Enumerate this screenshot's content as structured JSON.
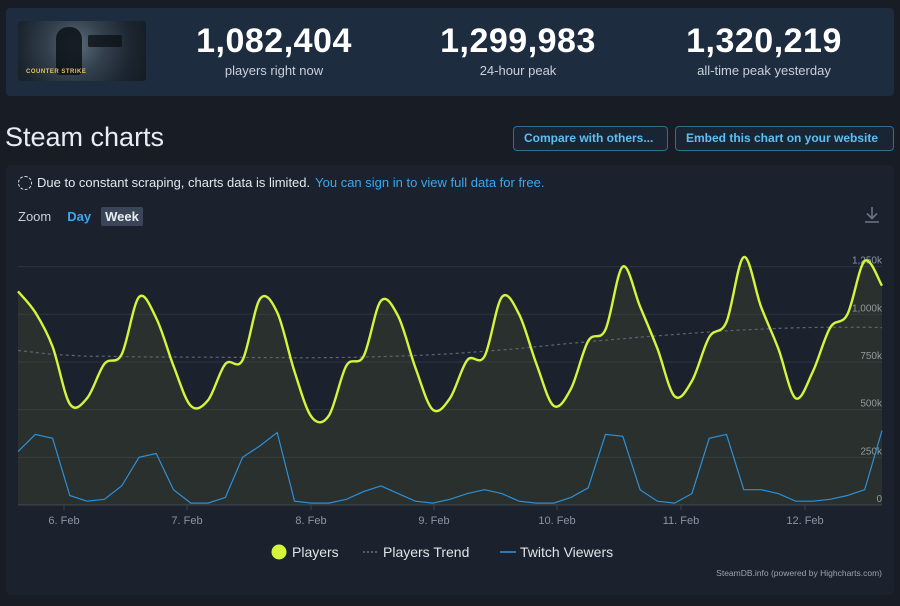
{
  "stats": [
    {
      "value": "1,082,404",
      "label": "players right now"
    },
    {
      "value": "1,299,983",
      "label": "24-hour peak"
    },
    {
      "value": "1,320,219",
      "label": "all-time peak yesterday"
    }
  ],
  "game_logo_text": "COUNTER STRIKE",
  "page_title": "Steam charts",
  "buttons": {
    "compare": "Compare with others...",
    "embed": "Embed this chart on your website"
  },
  "notice": {
    "text": "Due to constant scraping, charts data is limited.",
    "link": "You can sign in to view full data for free."
  },
  "zoom": {
    "label": "Zoom",
    "day": "Day",
    "week": "Week",
    "selected": "Week"
  },
  "credits": "SteamDB.info (powered by Highcharts.com)",
  "colors": {
    "players": "#d4f53c",
    "trend": "#5b6472",
    "twitch": "#2e8fd8",
    "accent": "#39a8ef",
    "background": "#181c24"
  },
  "chart_data": {
    "type": "line",
    "x_start": "5 Feb, 12:00",
    "x_step_hours": 3,
    "xticks": [
      "6. Feb",
      "7. Feb",
      "8. Feb",
      "9. Feb",
      "10. Feb",
      "11. Feb",
      "12. Feb"
    ],
    "yticks": [
      "0",
      "250k",
      "500k",
      "750k",
      "1,000k",
      "1,250k"
    ],
    "ylim": [
      0,
      1400000
    ],
    "grid": true,
    "legend": "bottom-center",
    "series": [
      {
        "name": "Players",
        "values": [
          1120000,
          1010000,
          830000,
          530000,
          560000,
          740000,
          790000,
          1090000,
          980000,
          730000,
          520000,
          550000,
          740000,
          760000,
          1080000,
          1010000,
          700000,
          460000,
          470000,
          730000,
          780000,
          1070000,
          990000,
          720000,
          500000,
          560000,
          760000,
          780000,
          1090000,
          1000000,
          740000,
          520000,
          610000,
          860000,
          920000,
          1250000,
          1040000,
          820000,
          570000,
          650000,
          880000,
          960000,
          1300000,
          1040000,
          820000,
          560000,
          700000,
          930000,
          1000000,
          1280000,
          1150000
        ]
      },
      {
        "name": "Players Trend",
        "values": [
          810000,
          800000,
          790000,
          785000,
          780000,
          780000,
          778000,
          777000,
          776000,
          776000,
          775000,
          775000,
          774000,
          774000,
          773000,
          773000,
          772000,
          772000,
          773000,
          774000,
          776000,
          778000,
          781000,
          784000,
          788000,
          793000,
          799000,
          806000,
          813000,
          821000,
          830000,
          839000,
          848000,
          856000,
          864000,
          872000,
          880000,
          887000,
          894000,
          901000,
          907000,
          913000,
          918000,
          922000,
          926000,
          929000,
          931000,
          932000,
          932000,
          932000,
          930000
        ]
      },
      {
        "name": "Twitch Viewers",
        "values": [
          280000,
          370000,
          350000,
          50000,
          20000,
          30000,
          100000,
          250000,
          270000,
          80000,
          10000,
          10000,
          40000,
          250000,
          310000,
          380000,
          20000,
          10000,
          10000,
          30000,
          70000,
          100000,
          60000,
          20000,
          10000,
          30000,
          60000,
          80000,
          60000,
          20000,
          10000,
          10000,
          40000,
          90000,
          370000,
          360000,
          80000,
          20000,
          10000,
          60000,
          350000,
          370000,
          80000,
          80000,
          60000,
          20000,
          20000,
          30000,
          50000,
          80000,
          390000
        ]
      }
    ]
  }
}
